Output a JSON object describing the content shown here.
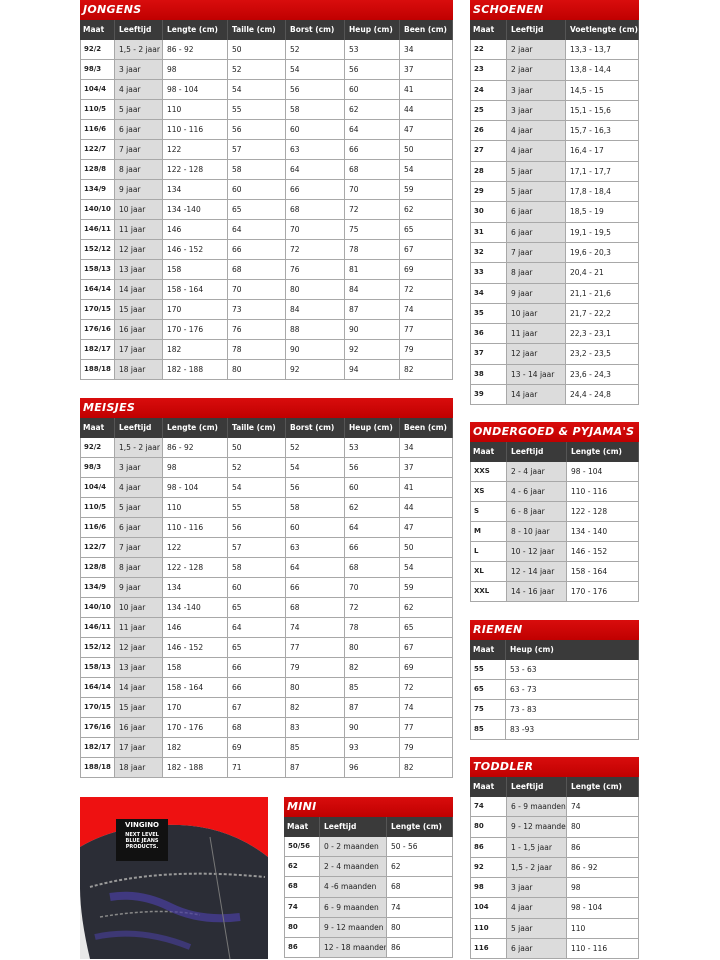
{
  "tables": {
    "jongens": {
      "title": "JONGENS",
      "headers": [
        "Maat",
        "Leeftijd",
        "Lengte (cm)",
        "Taille (cm)",
        "Borst (cm)",
        "Heup (cm)",
        "Been (cm)"
      ],
      "rows": [
        [
          "92/2",
          "1,5 - 2 jaar",
          "86 - 92",
          "50",
          "52",
          "53",
          "34"
        ],
        [
          "98/3",
          "3 jaar",
          "98",
          "52",
          "54",
          "56",
          "37"
        ],
        [
          "104/4",
          "4 jaar",
          "98 - 104",
          "54",
          "56",
          "60",
          "41"
        ],
        [
          "110/5",
          "5 jaar",
          "110",
          "55",
          "58",
          "62",
          "44"
        ],
        [
          "116/6",
          "6 jaar",
          "110 - 116",
          "56",
          "60",
          "64",
          "47"
        ],
        [
          "122/7",
          "7 jaar",
          "122",
          "57",
          "63",
          "66",
          "50"
        ],
        [
          "128/8",
          "8 jaar",
          "122 - 128",
          "58",
          "64",
          "68",
          "54"
        ],
        [
          "134/9",
          "9 jaar",
          "134",
          "60",
          "66",
          "70",
          "59"
        ],
        [
          "140/10",
          "10 jaar",
          "134 -140",
          "65",
          "68",
          "72",
          "62"
        ],
        [
          "146/11",
          "11 jaar",
          "146",
          "64",
          "70",
          "75",
          "65"
        ],
        [
          "152/12",
          "12 jaar",
          "146 - 152",
          "66",
          "72",
          "78",
          "67"
        ],
        [
          "158/13",
          "13 jaar",
          "158",
          "68",
          "76",
          "81",
          "69"
        ],
        [
          "164/14",
          "14 jaar",
          "158 - 164",
          "70",
          "80",
          "84",
          "72"
        ],
        [
          "170/15",
          "15 jaar",
          "170",
          "73",
          "84",
          "87",
          "74"
        ],
        [
          "176/16",
          "16 jaar",
          "170 - 176",
          "76",
          "88",
          "90",
          "77"
        ],
        [
          "182/17",
          "17 jaar",
          "182",
          "78",
          "90",
          "92",
          "79"
        ],
        [
          "188/18",
          "18 jaar",
          "182 - 188",
          "80",
          "92",
          "94",
          "82"
        ]
      ]
    },
    "meisjes": {
      "title": "MEISJES",
      "headers": [
        "Maat",
        "Leeftijd",
        "Lengte (cm)",
        "Taille (cm)",
        "Borst (cm)",
        "Heup (cm)",
        "Been (cm)"
      ],
      "rows": [
        [
          "92/2",
          "1,5 - 2 jaar",
          "86 - 92",
          "50",
          "52",
          "53",
          "34"
        ],
        [
          "98/3",
          "3 jaar",
          "98",
          "52",
          "54",
          "56",
          "37"
        ],
        [
          "104/4",
          "4 jaar",
          "98 - 104",
          "54",
          "56",
          "60",
          "41"
        ],
        [
          "110/5",
          "5 jaar",
          "110",
          "55",
          "58",
          "62",
          "44"
        ],
        [
          "116/6",
          "6 jaar",
          "110 - 116",
          "56",
          "60",
          "64",
          "47"
        ],
        [
          "122/7",
          "7 jaar",
          "122",
          "57",
          "63",
          "66",
          "50"
        ],
        [
          "128/8",
          "8 jaar",
          "122 - 128",
          "58",
          "64",
          "68",
          "54"
        ],
        [
          "134/9",
          "9 jaar",
          "134",
          "60",
          "66",
          "70",
          "59"
        ],
        [
          "140/10",
          "10 jaar",
          "134 -140",
          "65",
          "68",
          "72",
          "62"
        ],
        [
          "146/11",
          "11 jaar",
          "146",
          "64",
          "74",
          "78",
          "65"
        ],
        [
          "152/12",
          "12 jaar",
          "146 - 152",
          "65",
          "77",
          "80",
          "67"
        ],
        [
          "158/13",
          "13 jaar",
          "158",
          "66",
          "79",
          "82",
          "69"
        ],
        [
          "164/14",
          "14 jaar",
          "158 - 164",
          "66",
          "80",
          "85",
          "72"
        ],
        [
          "170/15",
          "15 jaar",
          "170",
          "67",
          "82",
          "87",
          "74"
        ],
        [
          "176/16",
          "16 jaar",
          "170 - 176",
          "68",
          "83",
          "90",
          "77"
        ],
        [
          "182/17",
          "17 jaar",
          "182",
          "69",
          "85",
          "93",
          "79"
        ],
        [
          "188/18",
          "18 jaar",
          "182 - 188",
          "71",
          "87",
          "96",
          "82"
        ]
      ]
    },
    "schoenen": {
      "title": "SCHOENEN",
      "headers": [
        "Maat",
        "Leeftijd",
        "Voetlengte (cm)"
      ],
      "rows": [
        [
          "22",
          "2 jaar",
          "13,3 - 13,7"
        ],
        [
          "23",
          "2 jaar",
          "13,8 - 14,4"
        ],
        [
          "24",
          "3 jaar",
          "14,5 - 15"
        ],
        [
          "25",
          "3 jaar",
          "15,1 - 15,6"
        ],
        [
          "26",
          "4 jaar",
          "15,7 - 16,3"
        ],
        [
          "27",
          "4 jaar",
          "16,4 - 17"
        ],
        [
          "28",
          "5 jaar",
          "17,1 - 17,7"
        ],
        [
          "29",
          "5 jaar",
          "17,8 - 18,4"
        ],
        [
          "30",
          "6 jaar",
          "18,5 - 19"
        ],
        [
          "31",
          "6 jaar",
          "19,1 - 19,5"
        ],
        [
          "32",
          "7 jaar",
          "19,6 - 20,3"
        ],
        [
          "33",
          "8 jaar",
          "20,4 - 21"
        ],
        [
          "34",
          "9 jaar",
          "21,1 - 21,6"
        ],
        [
          "35",
          "10 jaar",
          "21,7 - 22,2"
        ],
        [
          "36",
          "11 jaar",
          "22,3 - 23,1"
        ],
        [
          "37",
          "12 jaar",
          "23,2 - 23,5"
        ],
        [
          "38",
          "13 - 14 jaar",
          "23,6 - 24,3"
        ],
        [
          "39",
          "14 jaar",
          "24,4 - 24,8"
        ]
      ]
    },
    "ondergoed": {
      "title": "ONDERGOED & PYJAMA'S",
      "headers": [
        "Maat",
        "Leeftijd",
        "Lengte (cm)"
      ],
      "rows": [
        [
          "XXS",
          "2 - 4 jaar",
          "98 - 104"
        ],
        [
          "XS",
          "4 - 6 jaar",
          "110 - 116"
        ],
        [
          "S",
          "6 - 8 jaar",
          "122 - 128"
        ],
        [
          "M",
          "8 - 10 jaar",
          "134 - 140"
        ],
        [
          "L",
          "10 - 12 jaar",
          "146 - 152"
        ],
        [
          "XL",
          "12 - 14 jaar",
          "158 - 164"
        ],
        [
          "XXL",
          "14 - 16 jaar",
          "170 - 176"
        ]
      ]
    },
    "riemen": {
      "title": "RIEMEN",
      "headers": [
        "Maat",
        "Heup (cm)"
      ],
      "rows": [
        [
          "55",
          "53 - 63"
        ],
        [
          "65",
          "63 - 73"
        ],
        [
          "75",
          " 73 - 83"
        ],
        [
          "85",
          "83 -93"
        ]
      ]
    },
    "toddler": {
      "title": "TODDLER",
      "headers": [
        "Maat",
        "Leeftijd",
        "Lengte (cm)"
      ],
      "rows": [
        [
          "74",
          "6 - 9 maanden",
          "74"
        ],
        [
          "80",
          "9 - 12 maanden",
          "80"
        ],
        [
          "86",
          "1 - 1,5 jaar",
          "86"
        ],
        [
          "92",
          "1,5 - 2 jaar",
          "86 - 92"
        ],
        [
          "98",
          "3 jaar",
          "98"
        ],
        [
          "104",
          "4 jaar",
          "98 - 104"
        ],
        [
          "110",
          "5 jaar",
          "110"
        ],
        [
          "116",
          "6 jaar",
          "110 - 116"
        ]
      ]
    },
    "mini": {
      "title": "MINI",
      "headers": [
        "Maat",
        "Leeftijd",
        "Lengte (cm)"
      ],
      "rows": [
        [
          "50/56",
          "0 - 2 maanden",
          "50 - 56"
        ],
        [
          "62",
          "2 - 4 maanden",
          "62"
        ],
        [
          "68",
          "4 -6 maanden",
          "68"
        ],
        [
          "74",
          "6 - 9 maanden",
          "74"
        ],
        [
          "80",
          "9 - 12 maanden",
          "80"
        ],
        [
          "86",
          "12 - 18 maanden",
          "86"
        ]
      ]
    }
  },
  "photo": {
    "brand": "VINGINO",
    "label_lines": [
      "NEXT LEVEL",
      "BLUE JEANS",
      "PRODUCTS."
    ]
  },
  "colors": {
    "title_red": "#c00000",
    "header_dark": "#3a3a3a",
    "shade": "#dcdcdc"
  }
}
